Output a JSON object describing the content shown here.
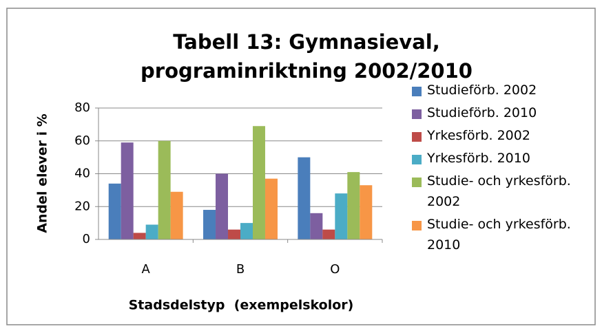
{
  "chart_data": {
    "type": "bar",
    "title": "Tabell 13: Gymnasieval, programinriktning 2002/2010",
    "x_label": "Stadsdelstyp  (exempelskolor)",
    "y_label": "Andel elever i %",
    "categories": [
      "A",
      "B",
      "O"
    ],
    "series": [
      {
        "name": "Studieförb. 2002",
        "color": "#4a7ebb",
        "values": [
          34,
          18,
          50
        ]
      },
      {
        "name": "Studieförb. 2010",
        "color": "#7d5fa0",
        "values": [
          59,
          40,
          16
        ]
      },
      {
        "name": "Yrkesförb. 2002",
        "color": "#be4b48",
        "values": [
          4,
          6,
          6
        ]
      },
      {
        "name": "Yrkesförb. 2010",
        "color": "#4bacc6",
        "values": [
          9,
          10,
          28
        ]
      },
      {
        "name": "Studie- och yrkesförb. 2002",
        "color": "#9bbb59",
        "values": [
          60,
          69,
          41
        ]
      },
      {
        "name": "Studie- och yrkesförb. 2010",
        "color": "#f79646",
        "values": [
          29,
          37,
          33
        ]
      }
    ],
    "ylim": [
      0,
      80
    ],
    "yticks": [
      0,
      20,
      40,
      60,
      80
    ],
    "grid": true,
    "legend": "right"
  }
}
